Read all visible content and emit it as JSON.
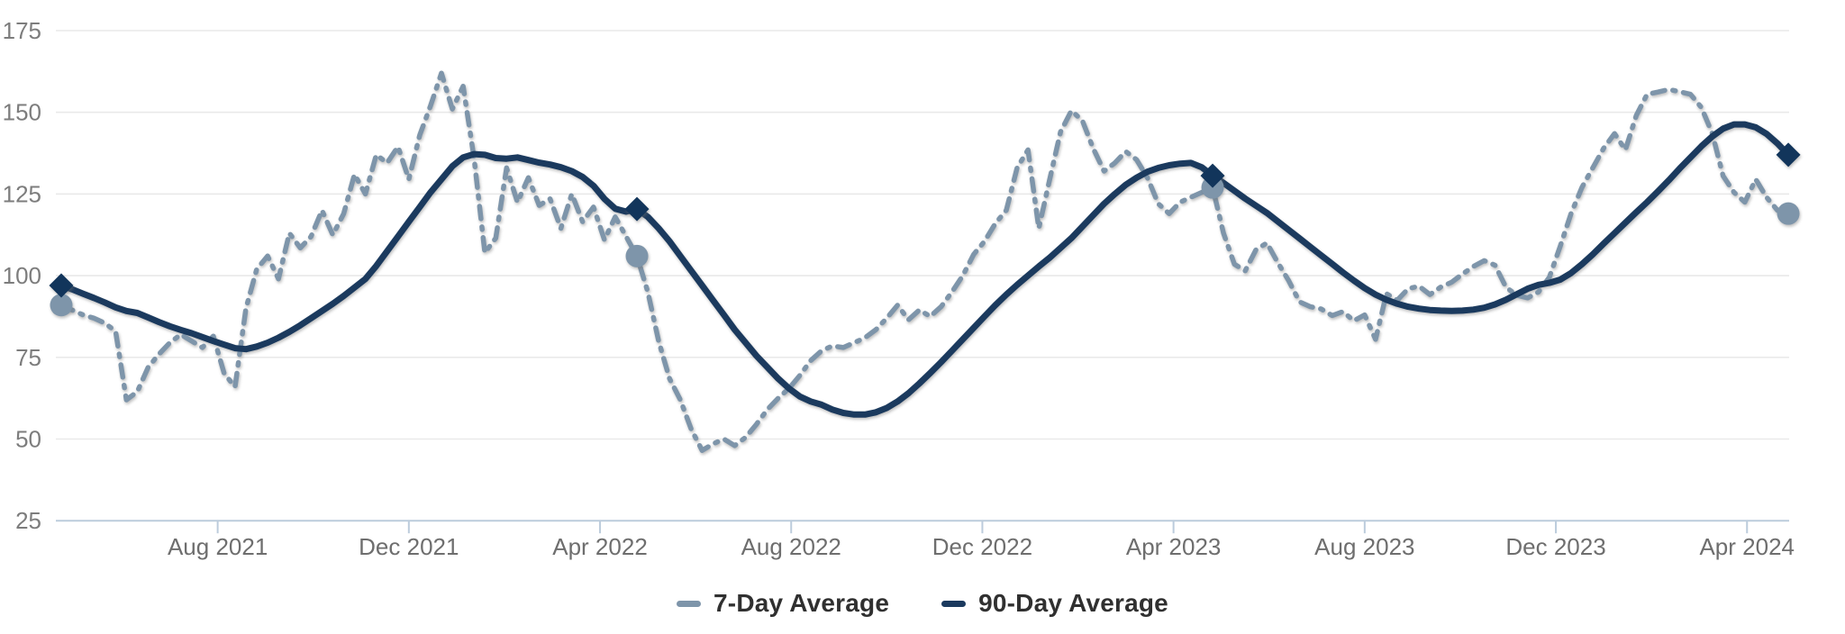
{
  "chart_data": {
    "type": "line",
    "title": "",
    "x_axis": {
      "unit": "weeks_from_start",
      "ticks": [
        {
          "label": "Aug 2021",
          "week": 14.4
        },
        {
          "label": "Dec 2021",
          "week": 32.0
        },
        {
          "label": "Apr 2022",
          "week": 49.6
        },
        {
          "label": "Aug 2022",
          "week": 67.2
        },
        {
          "label": "Dec 2022",
          "week": 84.8
        },
        {
          "label": "Apr 2023",
          "week": 102.4
        },
        {
          "label": "Aug 2023",
          "week": 120.0
        },
        {
          "label": "Dec 2023",
          "week": 137.6
        },
        {
          "label": "Apr 2024",
          "week": 155.2
        }
      ]
    },
    "y_axis": {
      "ticks": [
        25,
        50,
        75,
        100,
        125,
        150,
        175
      ],
      "ylim": [
        25,
        175
      ]
    },
    "grid": "horizontal-only",
    "legend_position": "bottom-center",
    "series": [
      {
        "name": "7-Day Average",
        "color": "#7E95AA",
        "style": "dash-dot",
        "marker_shape": "circle",
        "marker_weeks": [
          0,
          53,
          106,
          159
        ],
        "values": [
          91,
          89.5,
          88,
          87,
          85.5,
          83,
          62,
          64.5,
          72,
          76,
          79.5,
          82,
          80,
          78,
          81.5,
          70,
          66,
          90,
          102,
          106,
          99,
          113,
          108.5,
          112,
          120,
          112.5,
          119,
          131,
          125,
          137,
          134.5,
          139.5,
          129.5,
          143,
          152,
          162,
          151,
          158,
          136,
          107,
          111.5,
          133,
          122.5,
          130,
          121.5,
          123.5,
          114.5,
          125,
          116.5,
          121,
          111,
          118,
          112,
          106,
          95,
          80,
          68.5,
          62,
          53,
          46.5,
          48.5,
          50,
          48,
          50.5,
          54.5,
          59,
          62.5,
          65.5,
          69.5,
          74,
          77,
          78.5,
          78,
          79.5,
          81,
          83.5,
          87,
          91,
          86.5,
          89.5,
          87.5,
          90.5,
          95,
          100,
          106.5,
          110.5,
          116,
          120,
          133,
          138.5,
          114.5,
          129.5,
          144,
          150.5,
          147.5,
          139,
          132,
          134.5,
          138,
          135.5,
          130,
          122,
          119,
          122.5,
          124,
          125.5,
          127,
          113,
          103.5,
          101.5,
          108,
          110,
          104,
          98.5,
          92,
          90.5,
          89.8,
          87.8,
          89,
          86.2,
          88,
          80.5,
          94.5,
          92.5,
          96,
          96.8,
          94.2,
          96.5,
          98,
          100.5,
          102.8,
          104.6,
          103.2,
          96.5,
          94,
          93.2,
          95,
          99.5,
          109,
          119,
          127,
          133,
          139,
          143.5,
          138.5,
          149,
          155.5,
          156.2,
          157,
          156.3,
          155.5,
          151.5,
          143.5,
          130.5,
          125.5,
          122.5,
          129.5,
          124,
          120,
          119
        ]
      },
      {
        "name": "90-Day Average",
        "color": "#1B3A5E",
        "style": "solid",
        "marker_shape": "diamond",
        "marker_weeks": [
          0,
          53,
          106,
          159
        ],
        "values": [
          97,
          95.8,
          94.5,
          93.2,
          91.8,
          90.3,
          89.2,
          88.6,
          87.2,
          85.8,
          84.5,
          83.4,
          82.4,
          81.2,
          80,
          78.9,
          77.8,
          77.5,
          78.3,
          79.5,
          81,
          82.8,
          84.8,
          87,
          89.2,
          91.4,
          93.8,
          96.4,
          99,
          103,
          107.5,
          112,
          116.5,
          121,
          125.5,
          129.5,
          133.5,
          136.2,
          137.2,
          137,
          136,
          135.8,
          136.2,
          135.4,
          134.6,
          134,
          133.2,
          132,
          130.2,
          127.5,
          123.5,
          120.5,
          119.6,
          120.4,
          118,
          114.5,
          110.5,
          106,
          101.5,
          97,
          92.5,
          88,
          83.5,
          79.5,
          75.5,
          72,
          68.5,
          65.5,
          63,
          61.5,
          60.5,
          59,
          58,
          57.5,
          57.5,
          58.2,
          59.5,
          61.5,
          64,
          67,
          70.2,
          73.5,
          77,
          80.5,
          84,
          87.5,
          91,
          94.2,
          97.2,
          100,
          102.8,
          105.5,
          108.5,
          111.5,
          115,
          118.5,
          122,
          125,
          127.8,
          130,
          131.8,
          133,
          133.8,
          134.3,
          134.5,
          133.2,
          130.6,
          128.4,
          126,
          123.6,
          121.4,
          119.2,
          116.6,
          114,
          111.4,
          108.8,
          106.2,
          103.6,
          101,
          98.5,
          96.2,
          94.2,
          92.6,
          91.4,
          90.5,
          89.9,
          89.5,
          89.3,
          89.2,
          89.3,
          89.6,
          90.2,
          91.2,
          92.6,
          94.3,
          96,
          97.2,
          97.8,
          98.8,
          100.8,
          103.5,
          106.5,
          109.8,
          113,
          116.2,
          119.4,
          122.5,
          125.8,
          129.2,
          132.8,
          136.2,
          139.6,
          142.6,
          145,
          146.3,
          146.3,
          145.4,
          143.4,
          140.5,
          137
        ]
      }
    ],
    "colors": {
      "seven_day_line": "#7E95AA",
      "ninety_day_line": "#1B3A5E",
      "grid_line": "#E9E9E9",
      "axis_line": "#BCCCDC",
      "x_tick_label": "#6E6E6E",
      "y_tick_label": "#7D7D7D",
      "legend_text": "#303030"
    }
  },
  "legend": {
    "items": [
      {
        "label": "7-Day Average"
      },
      {
        "label": "90-Day Average"
      }
    ]
  }
}
